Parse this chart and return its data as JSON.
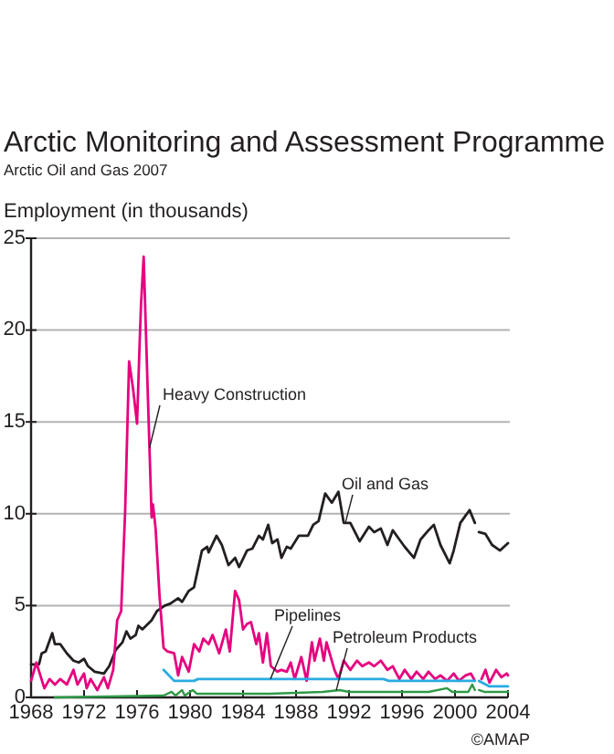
{
  "chart_data": {
    "type": "line",
    "title": "Arctic Monitoring and Assessment Programme",
    "subtitle": "Arctic Oil and Gas 2007",
    "ylabel": "Employment (in thousands)",
    "annotations": [
      "©AMAP"
    ],
    "xlim": [
      1968,
      2004
    ],
    "xticks": [
      1968,
      1972,
      1976,
      1980,
      1984,
      1988,
      1992,
      1996,
      2000,
      2004
    ],
    "ylim": [
      0,
      25
    ],
    "yticks": [
      0,
      5,
      10,
      15,
      20,
      25
    ],
    "grid": "y",
    "series": [
      {
        "name": "Oil and Gas",
        "color": "#231f20",
        "x": [
          1968.0,
          1968.6,
          1968.8,
          1969.1,
          1969.6,
          1969.8,
          1970.2,
          1970.7,
          1971.2,
          1971.6,
          1972.0,
          1972.3,
          1972.8,
          1973.5,
          1973.9,
          1974.4,
          1974.9,
          1975.2,
          1975.5,
          1975.9,
          1976.1,
          1976.4,
          1977.1,
          1977.5,
          1978.1,
          1978.5,
          1979.1,
          1979.4,
          1979.9,
          1980.3,
          1980.9,
          1981.3,
          1981.4,
          1982.0,
          1982.4,
          1982.9,
          1983.4,
          1983.7,
          1984.3,
          1984.7,
          1985.2,
          1985.5,
          1985.9,
          1986.2,
          1986.6,
          1986.9,
          1987.3,
          1987.6,
          1988.2,
          1988.9,
          1989.3,
          1989.7,
          1990.2,
          1990.7,
          1991.2,
          1991.6,
          1992.1,
          1992.8,
          1993.5,
          1993.9,
          1994.4,
          1994.9,
          1995.3,
          1995.8,
          1996.2,
          1996.9,
          1997.4,
          1998.0,
          1998.4,
          1998.9,
          1999.6,
          1999.9,
          2000.4,
          2001.1,
          2001.5,
          2001.6,
          2001.8,
          2002.3,
          2002.8,
          2003.4,
          2004.0
        ],
        "values": [
          1.8,
          1.8,
          2.4,
          2.5,
          3.5,
          2.9,
          2.9,
          2.4,
          2.0,
          1.9,
          2.1,
          1.7,
          1.4,
          1.3,
          1.7,
          2.6,
          3.0,
          3.6,
          3.2,
          3.4,
          3.9,
          3.7,
          4.2,
          4.7,
          5.0,
          5.1,
          5.4,
          5.2,
          5.8,
          6.0,
          8.0,
          8.2,
          7.9,
          8.8,
          8.3,
          7.2,
          7.6,
          7.1,
          8.0,
          8.1,
          8.8,
          8.6,
          9.4,
          8.4,
          8.6,
          7.6,
          8.2,
          8.1,
          8.8,
          8.8,
          9.4,
          9.6,
          11.1,
          10.6,
          11.2,
          9.5,
          9.5,
          8.5,
          9.3,
          9.0,
          9.2,
          8.3,
          9.1,
          8.6,
          8.2,
          7.6,
          8.6,
          9.1,
          9.4,
          8.3,
          7.3,
          8.0,
          9.5,
          10.2,
          9.5,
          null,
          9.0,
          8.9,
          8.3,
          8.0,
          8.4
        ]
      },
      {
        "name": "Heavy Construction",
        "color": "#e6007e",
        "x": [
          1968.0,
          1968.4,
          1969.0,
          1969.4,
          1969.8,
          1970.2,
          1970.7,
          1971.2,
          1971.5,
          1972.0,
          1972.2,
          1972.5,
          1973.0,
          1973.5,
          1973.8,
          1974.2,
          1974.5,
          1974.8,
          1975.1,
          1975.4,
          1975.7,
          1976.0,
          1976.2,
          1976.3,
          1976.5,
          1976.8,
          1977.1,
          1977.2,
          1977.4,
          1977.7,
          1978.0,
          1978.3,
          1978.8,
          1979.1,
          1979.4,
          1979.9,
          1980.3,
          1980.7,
          1981.0,
          1981.4,
          1981.7,
          1982.2,
          1982.7,
          1983.0,
          1983.4,
          1983.7,
          1984.0,
          1984.3,
          1984.6,
          1985.0,
          1985.2,
          1985.5,
          1985.8,
          1986.1,
          1986.6,
          1986.9,
          1987.3,
          1987.6,
          1987.9,
          1988.4,
          1988.8,
          1989.2,
          1989.4,
          1989.8,
          1990.1,
          1990.3,
          1990.9,
          1991.2,
          1991.6,
          1992.1,
          1992.6,
          1993.0,
          1993.5,
          1993.9,
          1994.4,
          1994.9,
          1995.3,
          1995.8,
          1996.2,
          1996.7,
          1997.1,
          1997.6,
          1998.0,
          1998.5,
          1998.9,
          1999.4,
          1999.9,
          2000.3,
          2000.8,
          2001.2,
          2001.5,
          2001.7,
          2002.0,
          2002.3,
          2002.6,
          2003.1,
          2003.5,
          2003.9,
          2004.0
        ],
        "values": [
          0.9,
          1.9,
          0.5,
          1.0,
          0.7,
          1.0,
          0.7,
          1.5,
          0.7,
          1.3,
          0.5,
          1.0,
          0.4,
          1.1,
          0.5,
          1.5,
          4.2,
          4.7,
          10.1,
          18.3,
          16.8,
          14.9,
          19.4,
          21.4,
          24.0,
          16.8,
          9.8,
          10.5,
          9.2,
          5.5,
          2.7,
          2.5,
          2.4,
          1.2,
          2.2,
          1.4,
          2.9,
          2.5,
          3.2,
          2.9,
          3.4,
          2.4,
          3.7,
          2.5,
          5.8,
          5.3,
          3.7,
          4.0,
          4.1,
          2.9,
          3.5,
          1.9,
          3.5,
          1.7,
          1.4,
          1.5,
          1.4,
          1.9,
          1.0,
          2.2,
          0.9,
          3.0,
          2.0,
          3.2,
          2.0,
          3.0,
          1.5,
          1.0,
          2.0,
          1.5,
          2.0,
          1.7,
          1.9,
          1.7,
          2.0,
          1.5,
          1.7,
          1.0,
          1.5,
          1.0,
          1.4,
          1.0,
          1.4,
          1.0,
          1.2,
          0.9,
          1.3,
          0.9,
          1.2,
          1.3,
          0.9,
          null,
          1.0,
          1.5,
          0.8,
          1.5,
          1.1,
          1.3,
          1.2
        ]
      },
      {
        "name": "Pipelines",
        "color": "#29abe2",
        "x": [
          1978.0,
          1978.8,
          1980.3,
          1980.6,
          1994.6,
          1995.0,
          2001.5,
          2001.6,
          2001.8,
          2002.6,
          2003.3,
          2004.0
        ],
        "values": [
          1.5,
          0.9,
          0.9,
          1.0,
          1.0,
          0.9,
          0.9,
          null,
          0.9,
          0.6,
          0.6,
          0.6
        ]
      },
      {
        "name": "Petroleum Products",
        "color": "#2e9a47",
        "x": [
          1969.8,
          1978.0,
          1978.6,
          1978.9,
          1979.4,
          1979.6,
          1980.2,
          1980.5,
          1986.0,
          1990.0,
          1991.3,
          1992.0,
          1998.0,
          1999.4,
          1999.8,
          2001.0,
          2001.3,
          2001.5,
          2001.6,
          2001.8,
          2002.2,
          2004.0
        ],
        "values": [
          0.0,
          0.1,
          0.3,
          0.1,
          0.4,
          0.1,
          0.4,
          0.2,
          0.2,
          0.3,
          0.4,
          0.3,
          0.3,
          0.5,
          0.3,
          0.3,
          0.7,
          0.4,
          null,
          0.4,
          0.3,
          0.3
        ]
      }
    ]
  }
}
